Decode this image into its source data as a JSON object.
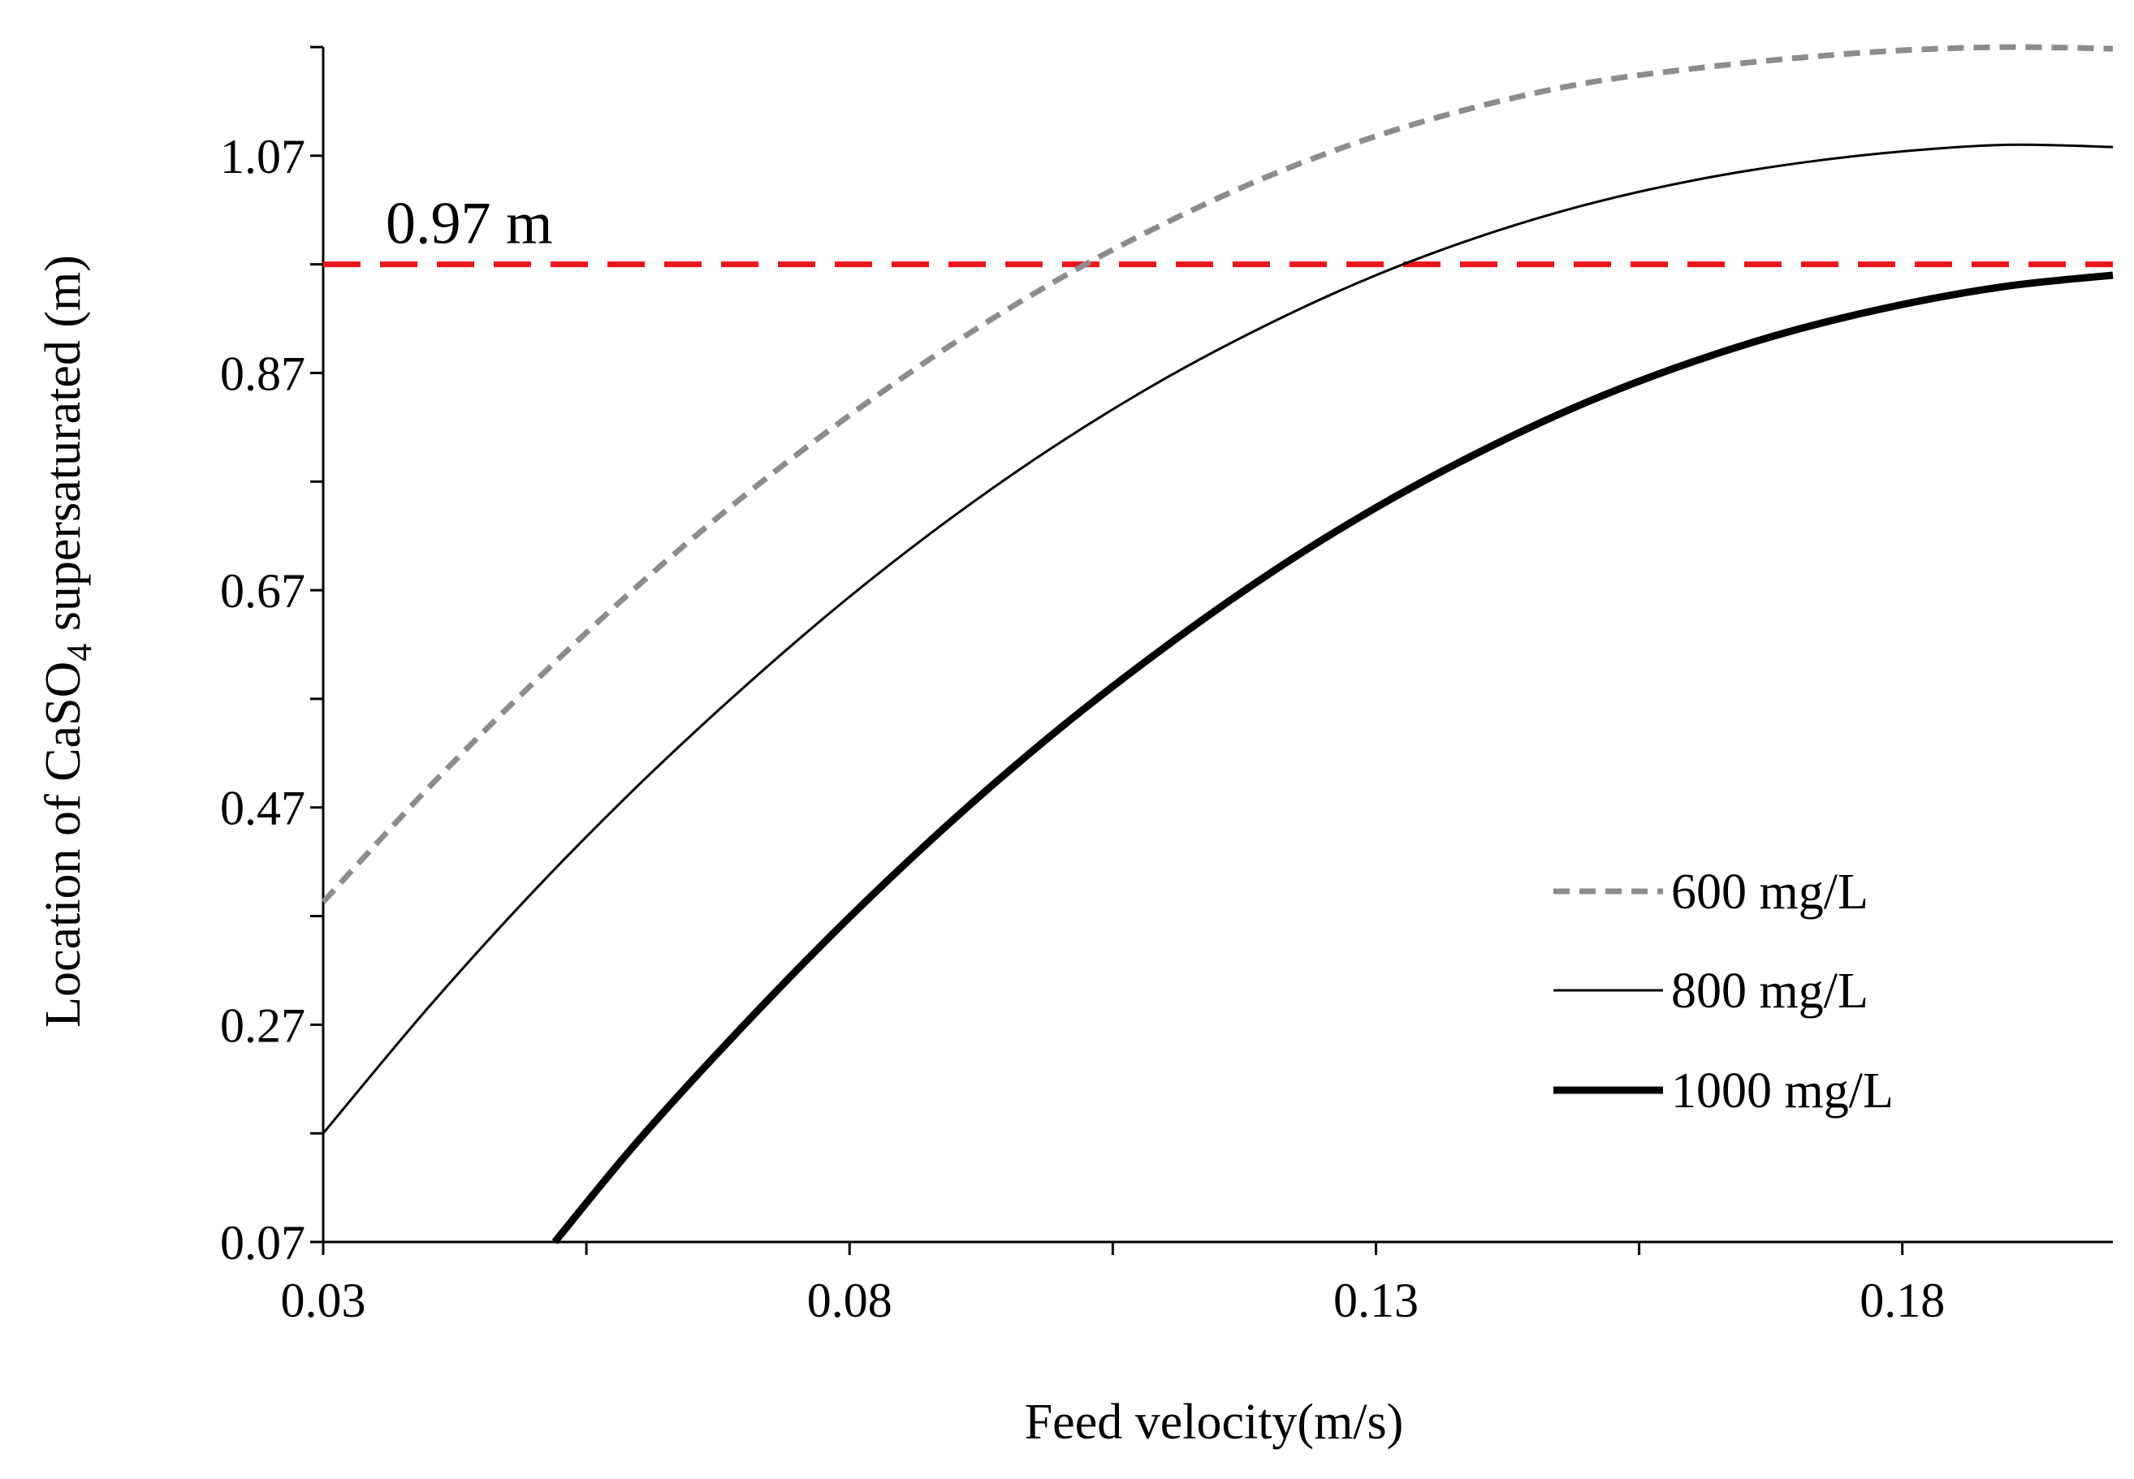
{
  "chart_data": {
    "type": "line",
    "title": "",
    "xlabel": "Feed velocity(m/s)",
    "ylabel_parts": [
      "Location of CaSO",
      "4",
      " supersaturated (m)"
    ],
    "xlim": [
      0.03,
      0.2
    ],
    "ylim": [
      0.07,
      1.17
    ],
    "x_ticks": [
      0.03,
      0.08,
      0.13,
      0.18
    ],
    "x_tick_labels": [
      "0.03",
      "0.08",
      "0.13",
      "0.18"
    ],
    "x_minor_ticks": [
      0.055,
      0.105,
      0.155
    ],
    "y_ticks": [
      0.07,
      0.27,
      0.47,
      0.67,
      0.87,
      1.07
    ],
    "y_tick_labels": [
      "0.07",
      "0.27",
      "0.47",
      "0.67",
      "0.87",
      "1.07"
    ],
    "y_minor_ticks": [
      0.17,
      0.37,
      0.57,
      0.77,
      0.97,
      1.17
    ],
    "reference_line": {
      "y": 0.97,
      "label": "0.97 m",
      "color": "#e8161b",
      "style": "dashed"
    },
    "legend_position": "bottom-right",
    "series": [
      {
        "name": "600 mg/L",
        "color": "#8c8c8c",
        "style": "dashed",
        "weight": "medium",
        "x": [
          0.03,
          0.04,
          0.05,
          0.06,
          0.07,
          0.08,
          0.09,
          0.1,
          0.11,
          0.12,
          0.13,
          0.14,
          0.15,
          0.16,
          0.17,
          0.18,
          0.19,
          0.2
        ],
        "y": [
          0.383,
          0.488,
          0.585,
          0.675,
          0.757,
          0.831,
          0.898,
          0.957,
          1.008,
          1.052,
          1.088,
          1.116,
          1.137,
          1.15,
          1.16,
          1.167,
          1.17,
          1.1685
        ]
      },
      {
        "name": "800 mg/L",
        "color": "#000000",
        "style": "solid",
        "weight": "thin",
        "x": [
          0.03,
          0.04,
          0.05,
          0.06,
          0.07,
          0.08,
          0.09,
          0.1,
          0.11,
          0.12,
          0.13,
          0.14,
          0.15,
          0.16,
          0.17,
          0.18,
          0.19,
          0.2
        ],
        "y": [
          0.17,
          0.286,
          0.393,
          0.491,
          0.581,
          0.664,
          0.739,
          0.806,
          0.865,
          0.916,
          0.96,
          0.996,
          1.025,
          1.047,
          1.063,
          1.074,
          1.08,
          1.078
        ]
      },
      {
        "name": "1000 mg/L",
        "color": "#000000",
        "style": "solid",
        "weight": "thick",
        "x": [
          0.052,
          0.06,
          0.07,
          0.08,
          0.09,
          0.1,
          0.11,
          0.12,
          0.13,
          0.14,
          0.15,
          0.16,
          0.17,
          0.18,
          0.19,
          0.2
        ],
        "y": [
          0.07,
          0.164,
          0.27,
          0.369,
          0.46,
          0.543,
          0.618,
          0.686,
          0.746,
          0.798,
          0.843,
          0.88,
          0.91,
          0.933,
          0.95,
          0.96
        ]
      }
    ]
  }
}
